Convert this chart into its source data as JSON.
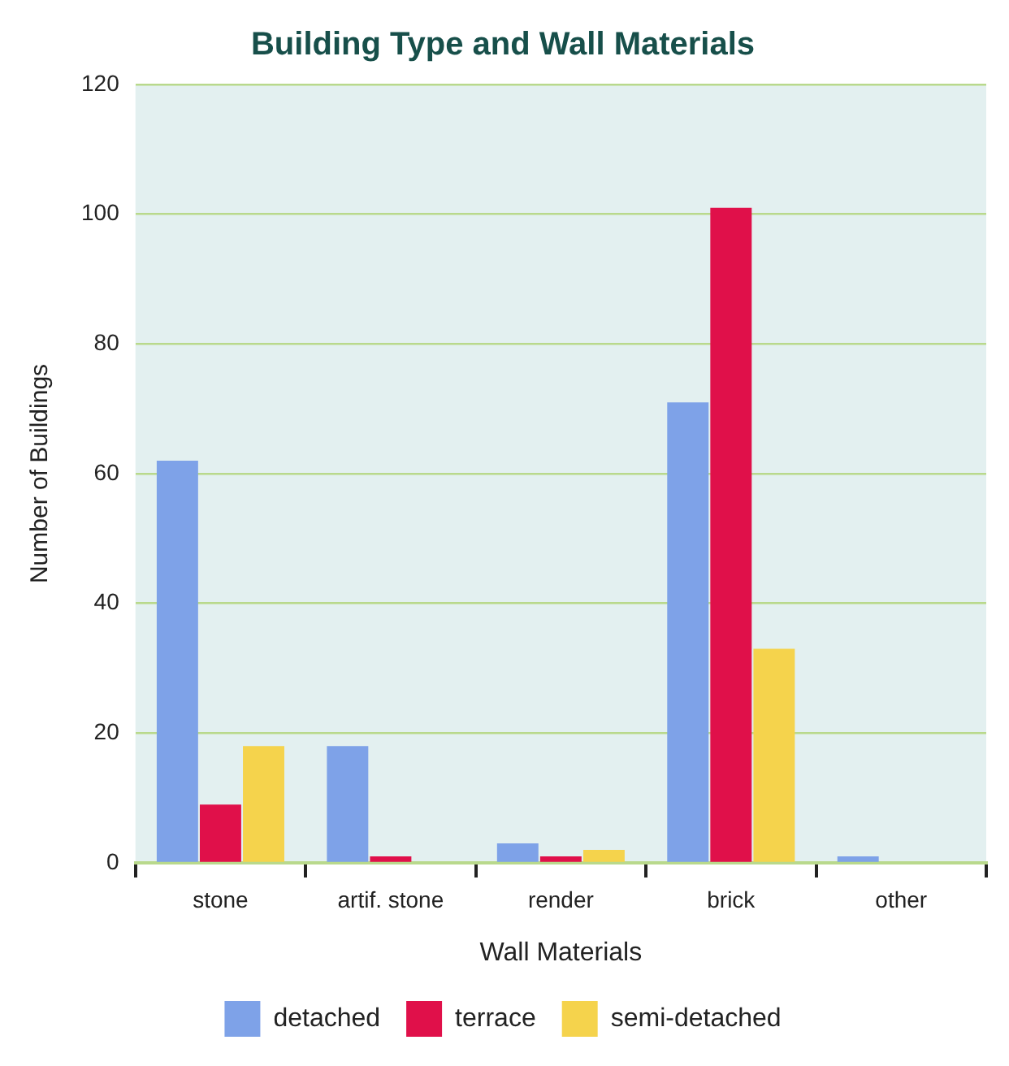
{
  "chart_data": {
    "type": "bar",
    "title": "Building Type and Wall Materials",
    "xlabel": "Wall Materials",
    "ylabel": "Number of Buildings",
    "categories": [
      "stone",
      "artif. stone",
      "render",
      "brick",
      "other"
    ],
    "series": [
      {
        "name": "detached",
        "color": "#7ea2e8",
        "values": [
          62,
          18,
          3,
          71,
          1
        ]
      },
      {
        "name": "terrace",
        "color": "#e0104a",
        "values": [
          9,
          1,
          1,
          101,
          0
        ]
      },
      {
        "name": "semi-detached",
        "color": "#f5d34c",
        "values": [
          18,
          0,
          2,
          33,
          0
        ]
      }
    ],
    "ylim": [
      0,
      120
    ],
    "yticks": [
      0,
      20,
      40,
      60,
      80,
      100,
      120
    ],
    "grid": "y",
    "legend": "bottom"
  }
}
